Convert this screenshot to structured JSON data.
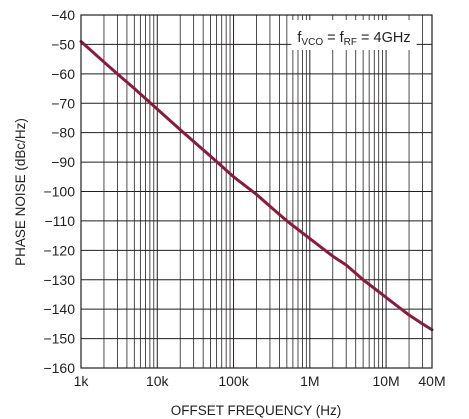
{
  "chart_data": {
    "type": "line",
    "title": "",
    "xlabel": "OFFSET FREQUENCY (Hz)",
    "ylabel": "PHASE NOISE (dBc/Hz)",
    "x_scale": "log",
    "xlim": [
      1000,
      40000000
    ],
    "ylim": [
      -160,
      -40
    ],
    "x_ticks": [
      1000,
      10000,
      100000,
      1000000,
      10000000,
      40000000
    ],
    "x_tick_labels": [
      "1k",
      "10k",
      "100k",
      "1M",
      "10M",
      "40M"
    ],
    "y_ticks": [
      -40,
      -50,
      -60,
      -70,
      -80,
      -90,
      -100,
      -110,
      -120,
      -130,
      -140,
      -150,
      -160
    ],
    "y_tick_labels": [
      "−40",
      "−50",
      "−60",
      "−70",
      "−80",
      "−90",
      "−100",
      "−110",
      "−120",
      "−130",
      "−140",
      "−150",
      "−160"
    ],
    "grid": true,
    "legend_position": "top-right",
    "annotation": {
      "f1": "f",
      "sub1": "VCO",
      "mid": " = f",
      "sub2": "RF",
      "tail": " = 4GHz"
    },
    "series": [
      {
        "color": "#8b1a3c",
        "x": [
          1000,
          2000,
          3000,
          5000,
          10000,
          20000,
          30000,
          50000,
          100000,
          200000,
          300000,
          500000,
          1000000,
          2000000,
          3000000,
          5000000,
          10000000,
          20000000,
          30000000,
          40000000
        ],
        "y": [
          -49,
          -56,
          -60,
          -65,
          -72,
          -79,
          -83,
          -88,
          -95,
          -101,
          -105,
          -110,
          -116,
          -122,
          -125,
          -130,
          -136,
          -142,
          -145,
          -147
        ]
      }
    ]
  }
}
